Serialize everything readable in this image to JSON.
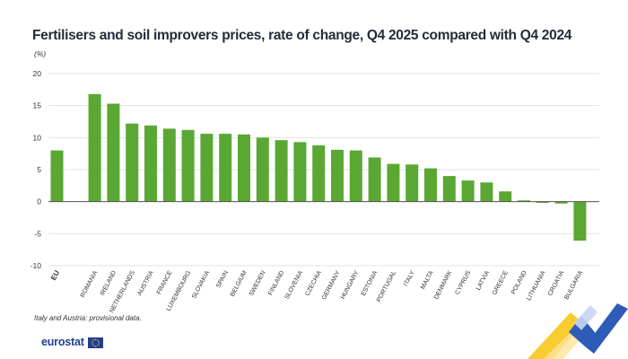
{
  "header": {
    "title": "Fertilisers and soil improvers prices, rate of change, Q4 2025 compared with Q4 2024",
    "unit": "(%)"
  },
  "footer": {
    "note": "Italy and Austria: provisional data.",
    "logo_text": "eurostat"
  },
  "colors": {
    "bar": "#5aa833",
    "grid": "#e3e3e3",
    "zero_line": "#555555",
    "text": "#333333",
    "logo": "#1f3f8f",
    "deco_yellow": "#f6c71a",
    "deco_blue": "#2d5bb8"
  },
  "chart_data": {
    "type": "bar",
    "categories": [
      "EU",
      "ROMANIA",
      "IRELAND",
      "NETHERLANDS",
      "AUSTRIA",
      "FRANCE",
      "LUXEMBOURG",
      "SLOVAKIA",
      "SPAIN",
      "BELGIUM",
      "SWEDEN",
      "FINLAND",
      "SLOVENIA",
      "CZECHIA",
      "GERMANY",
      "HUNGARY",
      "ESTONIA",
      "PORTUGAL",
      "ITALY",
      "MALTA",
      "DENMARK",
      "CYPRUS",
      "LATVIA",
      "GREECE",
      "POLAND",
      "LITHUANIA",
      "CROATIA",
      "BULGARIA"
    ],
    "values": [
      8.0,
      16.8,
      15.3,
      12.2,
      11.9,
      11.4,
      11.2,
      10.6,
      10.6,
      10.5,
      10.0,
      9.6,
      9.3,
      8.8,
      8.1,
      8.0,
      6.9,
      5.9,
      5.8,
      5.2,
      4.0,
      3.3,
      3.0,
      1.6,
      0.2,
      -0.2,
      -0.3,
      -6.1
    ],
    "ylim": [
      -10,
      20
    ],
    "yticks": [
      -10,
      -5,
      0,
      5,
      10,
      15,
      20
    ],
    "grid": true,
    "bold_categories": [
      "EU"
    ]
  }
}
